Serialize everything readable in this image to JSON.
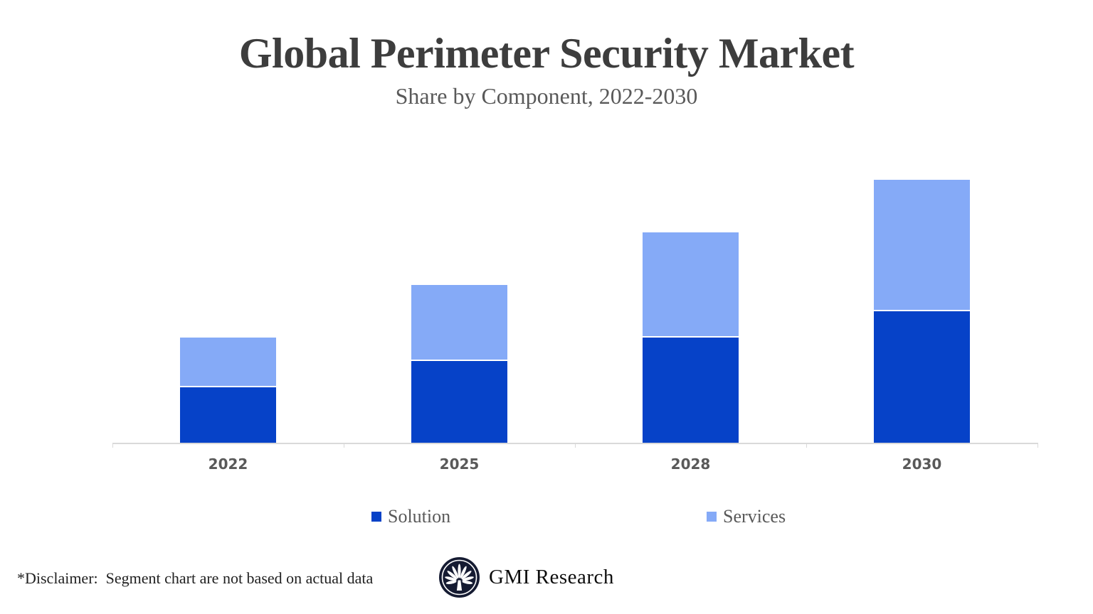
{
  "header": {
    "title": "Global Perimeter Security Market",
    "subtitle": "Share by Component, 2022-2030"
  },
  "chart_data": {
    "type": "bar",
    "stacked": true,
    "title": "Global Perimeter Security Market",
    "subtitle": "Share by Component, 2022-2030",
    "categories": [
      "2022",
      "2025",
      "2028",
      "2030"
    ],
    "series": [
      {
        "name": "Solution",
        "color": "#0642c8",
        "values": [
          21,
          31,
          40,
          50
        ]
      },
      {
        "name": "Services",
        "color": "#85aaf7",
        "values": [
          19,
          29,
          40,
          50
        ]
      }
    ],
    "totals": [
      40,
      60,
      80,
      100
    ],
    "xlabel": "",
    "ylabel": "",
    "ylim": [
      0,
      103
    ],
    "y_axis_visible": false,
    "grid": false,
    "legend_position": "bottom",
    "axis_color": "#d9d9d9",
    "segment_gap_color": "#ffffff"
  },
  "footer": {
    "disclaimer": "*Disclaimer:  Segment chart are not based on actual data",
    "brand": "GMI Research",
    "logo_icon": "palm-emblem-icon",
    "logo_color": "#151b32"
  }
}
